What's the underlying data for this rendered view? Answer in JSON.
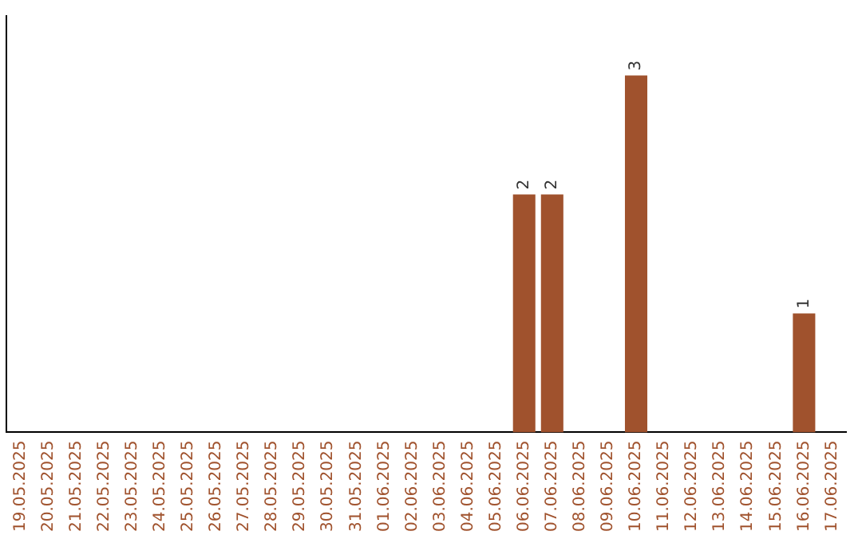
{
  "chart_data": {
    "type": "bar",
    "categories": [
      "19.05.2025",
      "20.05.2025",
      "21.05.2025",
      "22.05.2025",
      "23.05.2025",
      "24.05.2025",
      "25.05.2025",
      "26.05.2025",
      "27.05.2025",
      "28.05.2025",
      "29.05.2025",
      "30.05.2025",
      "31.05.2025",
      "01.06.2025",
      "02.06.2025",
      "03.06.2025",
      "04.06.2025",
      "05.06.2025",
      "06.06.2025",
      "07.06.2025",
      "08.06.2025",
      "09.06.2025",
      "10.06.2025",
      "11.06.2025",
      "12.06.2025",
      "13.06.2025",
      "14.06.2025",
      "15.06.2025",
      "16.06.2025",
      "17.06.2025"
    ],
    "values": [
      null,
      null,
      null,
      null,
      null,
      null,
      null,
      null,
      null,
      null,
      null,
      null,
      null,
      null,
      null,
      null,
      null,
      null,
      2,
      2,
      null,
      null,
      3,
      null,
      null,
      null,
      null,
      null,
      1,
      null
    ],
    "data_labels": true,
    "color": "#a0522d",
    "grid": false,
    "legend": false,
    "tick_labels": "x"
  }
}
